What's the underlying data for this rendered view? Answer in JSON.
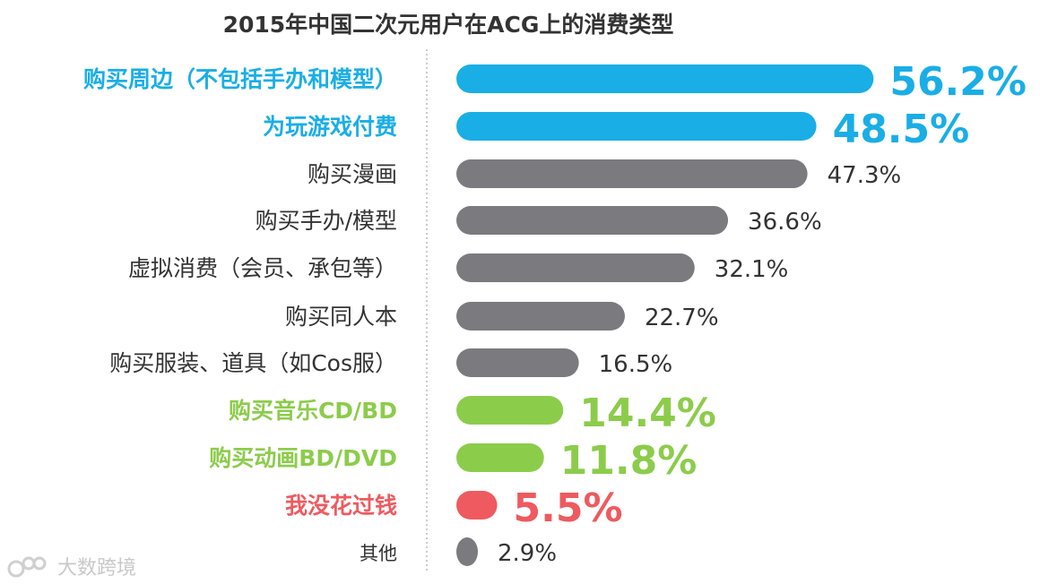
{
  "chart_data": {
    "type": "bar",
    "orientation": "horizontal",
    "title": "2015年中国二次元用户在ACG上的消费类型",
    "categories": [
      "购买周边（不包括手办和模型）",
      "为玩游戏付费",
      "购买漫画",
      "购买手办/模型",
      "虚拟消费（会员、承包等）",
      "购买同人本",
      "购买服装、道具（如Cos服）",
      "购买音乐CD/BD",
      "购买动画BD/DVD",
      "我没花过钱",
      "其他"
    ],
    "values": [
      56.2,
      48.5,
      47.3,
      36.6,
      32.1,
      22.7,
      16.5,
      14.4,
      11.8,
      5.5,
      2.9
    ],
    "value_labels": [
      "56.2%",
      "48.5%",
      "47.3%",
      "36.6%",
      "32.1%",
      "22.7%",
      "16.5%",
      "14.4%",
      "11.8%",
      "5.5%",
      "2.9%"
    ],
    "highlight": [
      "blue",
      "blue",
      "gray",
      "gray",
      "gray",
      "gray",
      "gray",
      "green",
      "green",
      "red",
      "gray"
    ],
    "colors": {
      "blue": "#1aaee6",
      "gray": "#7b7b7f",
      "green": "#8ccc4b",
      "red": "#ee5a5f"
    },
    "xlim": [
      0,
      60
    ],
    "grid": false,
    "legend": "none"
  },
  "watermark": "大数跨境"
}
